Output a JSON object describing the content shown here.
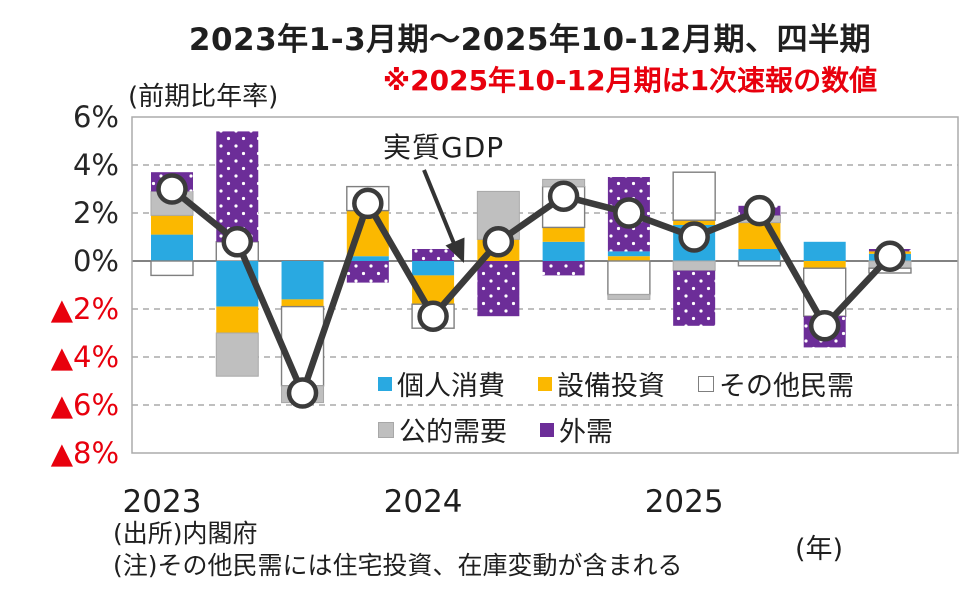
{
  "title": "2023年1-3月期～2025年10-12月期、四半期",
  "note_red": "※2025年10-12月期は1次速報の数値",
  "axis_unit_label": "(前期比年率)",
  "source": "(出所)内閣府",
  "footnote": "(注)その他民需には住宅投資、在庫変動が含まれる",
  "year_suffix": "(年)",
  "annotation": {
    "label": "実質GDP"
  },
  "colors": {
    "consumption": "#29A9E1",
    "capex": "#FBB800",
    "other": "#FFFFFF",
    "other_border": "#7F7F7F",
    "public": "#BFBFBF",
    "public_border": "#A8A8A8",
    "external": "#6C2D98",
    "line": "#3B3B3B",
    "negative_red": "#E8000D",
    "grid": "#999999",
    "plot_border": "#ABABAB",
    "zero_line": "#595959",
    "text": "#1F1F1F"
  },
  "legend": {
    "rows": [
      [
        {
          "id": "consumption",
          "label": "個人消費"
        },
        {
          "id": "capex",
          "label": "設備投資"
        },
        {
          "id": "other",
          "label": "その他民需"
        }
      ],
      [
        {
          "id": "public",
          "label": "公的需要"
        },
        {
          "id": "external",
          "label": "外需"
        }
      ]
    ]
  },
  "y_axis": {
    "unit": "percent",
    "ticks": [
      {
        "value": 6,
        "label": "6%",
        "negative": false
      },
      {
        "value": 4,
        "label": "4%",
        "negative": false
      },
      {
        "value": 2,
        "label": "2%",
        "negative": false
      },
      {
        "value": 0,
        "label": "0%",
        "negative": false
      },
      {
        "value": -2,
        "label": "▲2%",
        "negative": true
      },
      {
        "value": -4,
        "label": "▲4%",
        "negative": true
      },
      {
        "value": -6,
        "label": "▲6%",
        "negative": true
      },
      {
        "value": -8,
        "label": "▲8%",
        "negative": true
      }
    ]
  },
  "x_axis": {
    "years": [
      {
        "label": "2023",
        "quarter_index": 0
      },
      {
        "label": "2024",
        "quarter_index": 4
      },
      {
        "label": "2025",
        "quarter_index": 8
      }
    ]
  },
  "chart_data": {
    "type": "bar",
    "subtype": "stacked-bar-with-line",
    "title": "2023年1-3月期～2025年10-12月期、四半期",
    "ylabel": "(前期比年率)",
    "ylim": [
      -8,
      6
    ],
    "grid": true,
    "line_series_name": "実質GDP",
    "series_names": {
      "consumption": "個人消費",
      "capex": "設備投資",
      "other": "その他民需",
      "public": "公的需要",
      "external": "外需"
    },
    "quarters": [
      {
        "q": "2023Q1",
        "gdp": 3.0,
        "pos": [
          [
            "consumption",
            1.1
          ],
          [
            "capex",
            0.8
          ],
          [
            "public",
            1.0
          ],
          [
            "external",
            0.8
          ]
        ],
        "neg": [
          [
            "other",
            -0.6
          ]
        ]
      },
      {
        "q": "2023Q2",
        "gdp": 0.8,
        "pos": [
          [
            "other",
            0.8
          ],
          [
            "external",
            4.6
          ]
        ],
        "neg": [
          [
            "consumption",
            -1.9
          ],
          [
            "capex",
            -1.1
          ],
          [
            "public",
            -1.8
          ]
        ]
      },
      {
        "q": "2023Q3",
        "gdp": -5.5,
        "pos": [],
        "neg": [
          [
            "consumption",
            -1.6
          ],
          [
            "capex",
            -0.3
          ],
          [
            "other",
            -3.3
          ],
          [
            "public",
            -0.7
          ]
        ]
      },
      {
        "q": "2023Q4",
        "gdp": 2.4,
        "pos": [
          [
            "consumption",
            0.2
          ],
          [
            "capex",
            1.9
          ],
          [
            "other",
            1.0
          ]
        ],
        "neg": [
          [
            "external",
            -0.9
          ]
        ]
      },
      {
        "q": "2024Q1",
        "gdp": -2.3,
        "pos": [
          [
            "external",
            0.5
          ]
        ],
        "neg": [
          [
            "consumption",
            -0.6
          ],
          [
            "capex",
            -1.2
          ],
          [
            "other",
            -1.0
          ]
        ]
      },
      {
        "q": "2024Q2",
        "gdp": 0.8,
        "pos": [
          [
            "capex",
            0.9
          ],
          [
            "public",
            2.0
          ]
        ],
        "neg": [
          [
            "external",
            -2.3
          ]
        ]
      },
      {
        "q": "2024Q3",
        "gdp": 2.7,
        "pos": [
          [
            "consumption",
            0.8
          ],
          [
            "capex",
            0.6
          ],
          [
            "other",
            1.7
          ],
          [
            "public",
            0.3
          ]
        ],
        "neg": [
          [
            "external",
            -0.6
          ]
        ]
      },
      {
        "q": "2024Q4",
        "gdp": 2.0,
        "pos": [
          [
            "capex",
            0.2
          ],
          [
            "consumption",
            0.2
          ],
          [
            "external",
            3.1
          ]
        ],
        "neg": [
          [
            "other",
            -1.4
          ],
          [
            "public",
            -0.2
          ]
        ]
      },
      {
        "q": "2025Q1",
        "gdp": 1.0,
        "pos": [
          [
            "consumption",
            1.5
          ],
          [
            "capex",
            0.2
          ],
          [
            "other",
            2.0
          ]
        ],
        "neg": [
          [
            "public",
            -0.4
          ],
          [
            "external",
            -2.3
          ]
        ]
      },
      {
        "q": "2025Q2",
        "gdp": 2.1,
        "pos": [
          [
            "consumption",
            0.5
          ],
          [
            "capex",
            1.1
          ],
          [
            "public",
            0.3
          ],
          [
            "external",
            0.4
          ]
        ],
        "neg": [
          [
            "other",
            -0.2
          ]
        ]
      },
      {
        "q": "2025Q3",
        "gdp": -2.7,
        "pos": [
          [
            "consumption",
            0.8
          ]
        ],
        "neg": [
          [
            "capex",
            -0.3
          ],
          [
            "other",
            -2.0
          ],
          [
            "external",
            -1.3
          ]
        ]
      },
      {
        "q": "2025Q4",
        "gdp": 0.2,
        "pos": [
          [
            "consumption",
            0.3
          ],
          [
            "capex",
            0.1
          ],
          [
            "external",
            0.1
          ]
        ],
        "neg": [
          [
            "public",
            -0.3
          ],
          [
            "other",
            -0.2
          ]
        ]
      }
    ]
  }
}
